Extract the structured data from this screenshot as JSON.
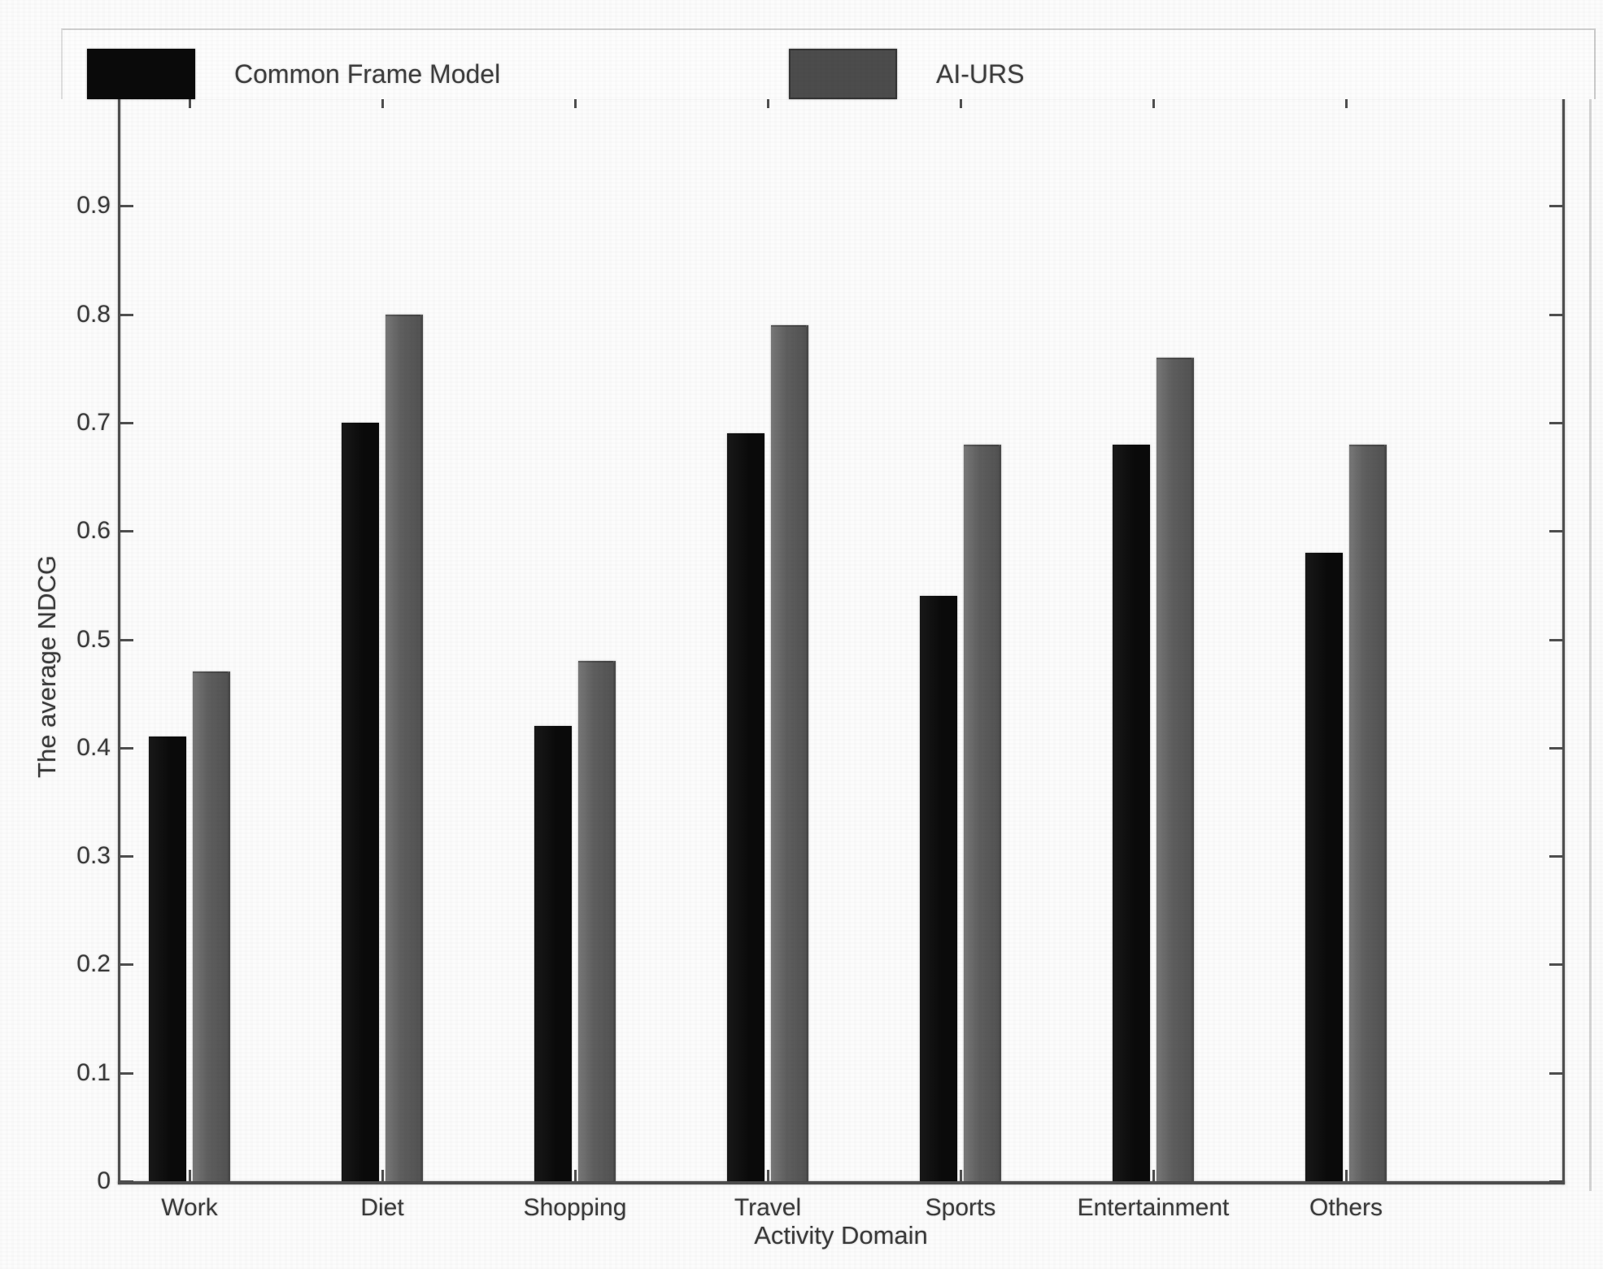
{
  "legend": {
    "items": [
      {
        "label": "Common Frame Model",
        "color": "#0a0a0a"
      },
      {
        "label": "AI-URS",
        "color": "#4c4c4c"
      }
    ]
  },
  "chart_data": {
    "type": "bar",
    "title": "",
    "xlabel": "Activity Domain",
    "ylabel": "The average NDCG",
    "categories": [
      "Work",
      "Diet",
      "Shopping",
      "Travel",
      "Sports",
      "Entertainment",
      "Others"
    ],
    "series": [
      {
        "name": "Common Frame Model",
        "color": "#0a0a0a",
        "values": [
          0.41,
          0.7,
          0.42,
          0.69,
          0.54,
          0.68,
          0.58
        ]
      },
      {
        "name": "AI-URS",
        "color": "#5e5e5e",
        "values": [
          0.47,
          0.8,
          0.48,
          0.79,
          0.68,
          0.76,
          0.68
        ]
      }
    ],
    "ylim": [
      0,
      1.0
    ],
    "yticks": [
      0,
      0.1,
      0.2,
      0.3,
      0.4,
      0.5,
      0.6,
      0.7,
      0.8,
      0.9
    ],
    "grid": false,
    "legend_position": "top"
  }
}
